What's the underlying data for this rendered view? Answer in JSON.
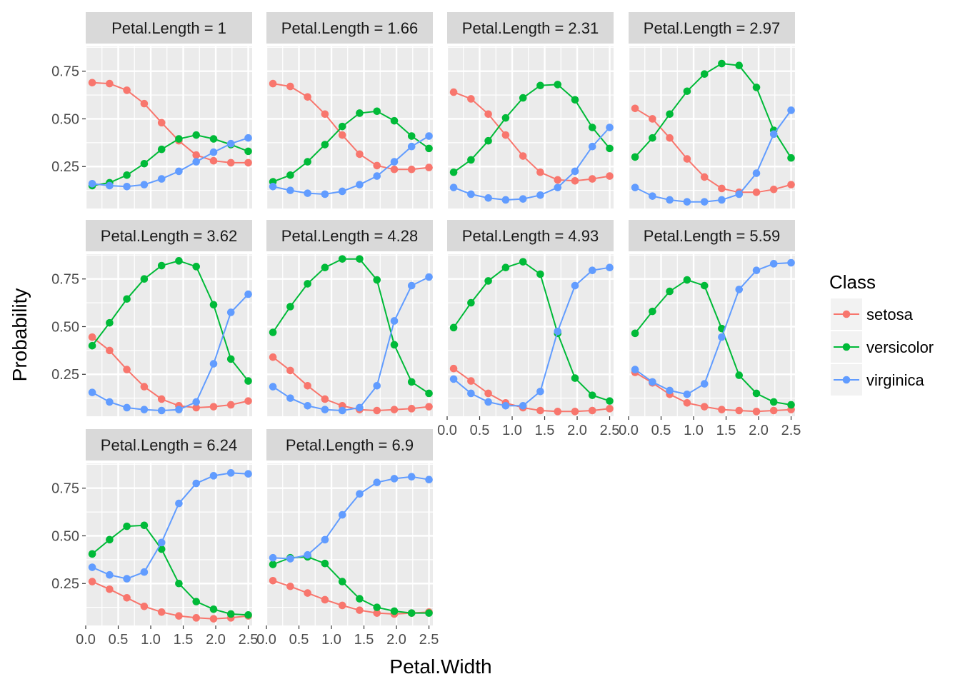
{
  "chart_data": {
    "type": "line",
    "facet_variable": "Petal.Length",
    "xlabel": "Petal.Width",
    "ylabel": "Probability",
    "x": [
      0.1,
      0.367,
      0.633,
      0.9,
      1.167,
      1.433,
      1.7,
      1.967,
      2.233,
      2.5
    ],
    "xlim": [
      0.0,
      2.56
    ],
    "ylim": [
      0.03,
      0.88
    ],
    "x_ticks": [
      "0.0",
      "0.5",
      "1.0",
      "1.5",
      "2.0",
      "2.5"
    ],
    "y_ticks": [
      "0.25",
      "0.50",
      "0.75"
    ],
    "legend": {
      "title": "Class",
      "position": "right",
      "entries": [
        "setosa",
        "versicolor",
        "virginica"
      ]
    },
    "colors": {
      "setosa": "#F8766D",
      "versicolor": "#00BA38",
      "virginica": "#619CFF"
    },
    "grid": true,
    "panel_background": "#EBEBEB",
    "strip_background": "#D9D9D9",
    "panels": [
      {
        "label": "Petal.Length = 1",
        "series": [
          {
            "name": "setosa",
            "values": [
              0.69,
              0.685,
              0.65,
              0.58,
              0.48,
              0.385,
              0.31,
              0.28,
              0.27,
              0.27
            ]
          },
          {
            "name": "versicolor",
            "values": [
              0.15,
              0.165,
              0.205,
              0.265,
              0.34,
              0.395,
              0.415,
              0.395,
              0.365,
              0.33
            ]
          },
          {
            "name": "virginica",
            "values": [
              0.16,
              0.15,
              0.145,
              0.155,
              0.185,
              0.225,
              0.275,
              0.325,
              0.37,
              0.4
            ]
          }
        ]
      },
      {
        "label": "Petal.Length = 1.66",
        "series": [
          {
            "name": "setosa",
            "values": [
              0.685,
              0.67,
              0.615,
              0.525,
              0.415,
              0.315,
              0.255,
              0.235,
              0.235,
              0.245
            ]
          },
          {
            "name": "versicolor",
            "values": [
              0.17,
              0.205,
              0.275,
              0.365,
              0.46,
              0.53,
              0.54,
              0.49,
              0.41,
              0.345
            ]
          },
          {
            "name": "virginica",
            "values": [
              0.145,
              0.125,
              0.11,
              0.105,
              0.12,
              0.155,
              0.2,
              0.275,
              0.355,
              0.41
            ]
          }
        ]
      },
      {
        "label": "Petal.Length = 2.31",
        "series": [
          {
            "name": "setosa",
            "values": [
              0.64,
              0.605,
              0.525,
              0.415,
              0.305,
              0.22,
              0.18,
              0.175,
              0.185,
              0.2
            ]
          },
          {
            "name": "versicolor",
            "values": [
              0.22,
              0.285,
              0.385,
              0.505,
              0.61,
              0.675,
              0.68,
              0.6,
              0.455,
              0.345
            ]
          },
          {
            "name": "virginica",
            "values": [
              0.14,
              0.105,
              0.085,
              0.075,
              0.08,
              0.1,
              0.14,
              0.225,
              0.355,
              0.455
            ]
          }
        ]
      },
      {
        "label": "Petal.Length = 2.97",
        "series": [
          {
            "name": "setosa",
            "values": [
              0.555,
              0.5,
              0.4,
              0.29,
              0.195,
              0.135,
              0.115,
              0.115,
              0.13,
              0.155
            ]
          },
          {
            "name": "versicolor",
            "values": [
              0.3,
              0.4,
              0.525,
              0.645,
              0.735,
              0.79,
              0.78,
              0.665,
              0.44,
              0.295
            ]
          },
          {
            "name": "virginica",
            "values": [
              0.14,
              0.095,
              0.075,
              0.065,
              0.065,
              0.075,
              0.105,
              0.215,
              0.42,
              0.545
            ]
          }
        ]
      },
      {
        "label": "Petal.Length = 3.62",
        "series": [
          {
            "name": "setosa",
            "values": [
              0.445,
              0.375,
              0.275,
              0.185,
              0.12,
              0.085,
              0.075,
              0.08,
              0.09,
              0.11
            ]
          },
          {
            "name": "versicolor",
            "values": [
              0.4,
              0.52,
              0.645,
              0.75,
              0.82,
              0.845,
              0.815,
              0.615,
              0.33,
              0.215
            ]
          },
          {
            "name": "virginica",
            "values": [
              0.155,
              0.105,
              0.075,
              0.065,
              0.06,
              0.065,
              0.105,
              0.305,
              0.575,
              0.67
            ]
          }
        ]
      },
      {
        "label": "Petal.Length = 4.28",
        "series": [
          {
            "name": "setosa",
            "values": [
              0.34,
              0.27,
              0.19,
              0.12,
              0.085,
              0.065,
              0.06,
              0.065,
              0.07,
              0.08
            ]
          },
          {
            "name": "versicolor",
            "values": [
              0.47,
              0.605,
              0.725,
              0.81,
              0.855,
              0.855,
              0.745,
              0.405,
              0.21,
              0.15
            ]
          },
          {
            "name": "virginica",
            "values": [
              0.185,
              0.125,
              0.085,
              0.065,
              0.06,
              0.075,
              0.19,
              0.53,
              0.715,
              0.76
            ]
          }
        ]
      },
      {
        "label": "Petal.Length = 4.93",
        "series": [
          {
            "name": "setosa",
            "values": [
              0.28,
              0.215,
              0.15,
              0.1,
              0.075,
              0.06,
              0.055,
              0.055,
              0.06,
              0.07
            ]
          },
          {
            "name": "versicolor",
            "values": [
              0.495,
              0.625,
              0.74,
              0.81,
              0.84,
              0.775,
              0.465,
              0.23,
              0.14,
              0.11
            ]
          },
          {
            "name": "virginica",
            "values": [
              0.225,
              0.15,
              0.105,
              0.085,
              0.085,
              0.16,
              0.475,
              0.715,
              0.795,
              0.81
            ]
          }
        ]
      },
      {
        "label": "Petal.Length = 5.59",
        "series": [
          {
            "name": "setosa",
            "values": [
              0.26,
              0.205,
              0.145,
              0.1,
              0.08,
              0.065,
              0.06,
              0.055,
              0.06,
              0.065
            ]
          },
          {
            "name": "versicolor",
            "values": [
              0.465,
              0.58,
              0.685,
              0.745,
              0.715,
              0.49,
              0.245,
              0.15,
              0.105,
              0.09
            ]
          },
          {
            "name": "virginica",
            "values": [
              0.275,
              0.21,
              0.165,
              0.145,
              0.2,
              0.445,
              0.695,
              0.795,
              0.83,
              0.835
            ]
          }
        ]
      },
      {
        "label": "Petal.Length = 6.24",
        "series": [
          {
            "name": "setosa",
            "values": [
              0.26,
              0.22,
              0.175,
              0.13,
              0.1,
              0.08,
              0.07,
              0.065,
              0.07,
              0.08
            ]
          },
          {
            "name": "versicolor",
            "values": [
              0.405,
              0.48,
              0.55,
              0.555,
              0.43,
              0.25,
              0.155,
              0.115,
              0.09,
              0.085
            ]
          },
          {
            "name": "virginica",
            "values": [
              0.335,
              0.295,
              0.275,
              0.31,
              0.465,
              0.67,
              0.775,
              0.815,
              0.83,
              0.825
            ]
          }
        ]
      },
      {
        "label": "Petal.Length = 6.9",
        "series": [
          {
            "name": "setosa",
            "values": [
              0.265,
              0.235,
              0.2,
              0.165,
              0.135,
              0.11,
              0.095,
              0.09,
              0.095,
              0.1
            ]
          },
          {
            "name": "versicolor",
            "values": [
              0.35,
              0.385,
              0.39,
              0.355,
              0.26,
              0.17,
              0.125,
              0.105,
              0.095,
              0.095
            ]
          },
          {
            "name": "virginica",
            "values": [
              0.385,
              0.38,
              0.4,
              0.48,
              0.61,
              0.72,
              0.78,
              0.8,
              0.81,
              0.795
            ]
          }
        ]
      }
    ]
  }
}
